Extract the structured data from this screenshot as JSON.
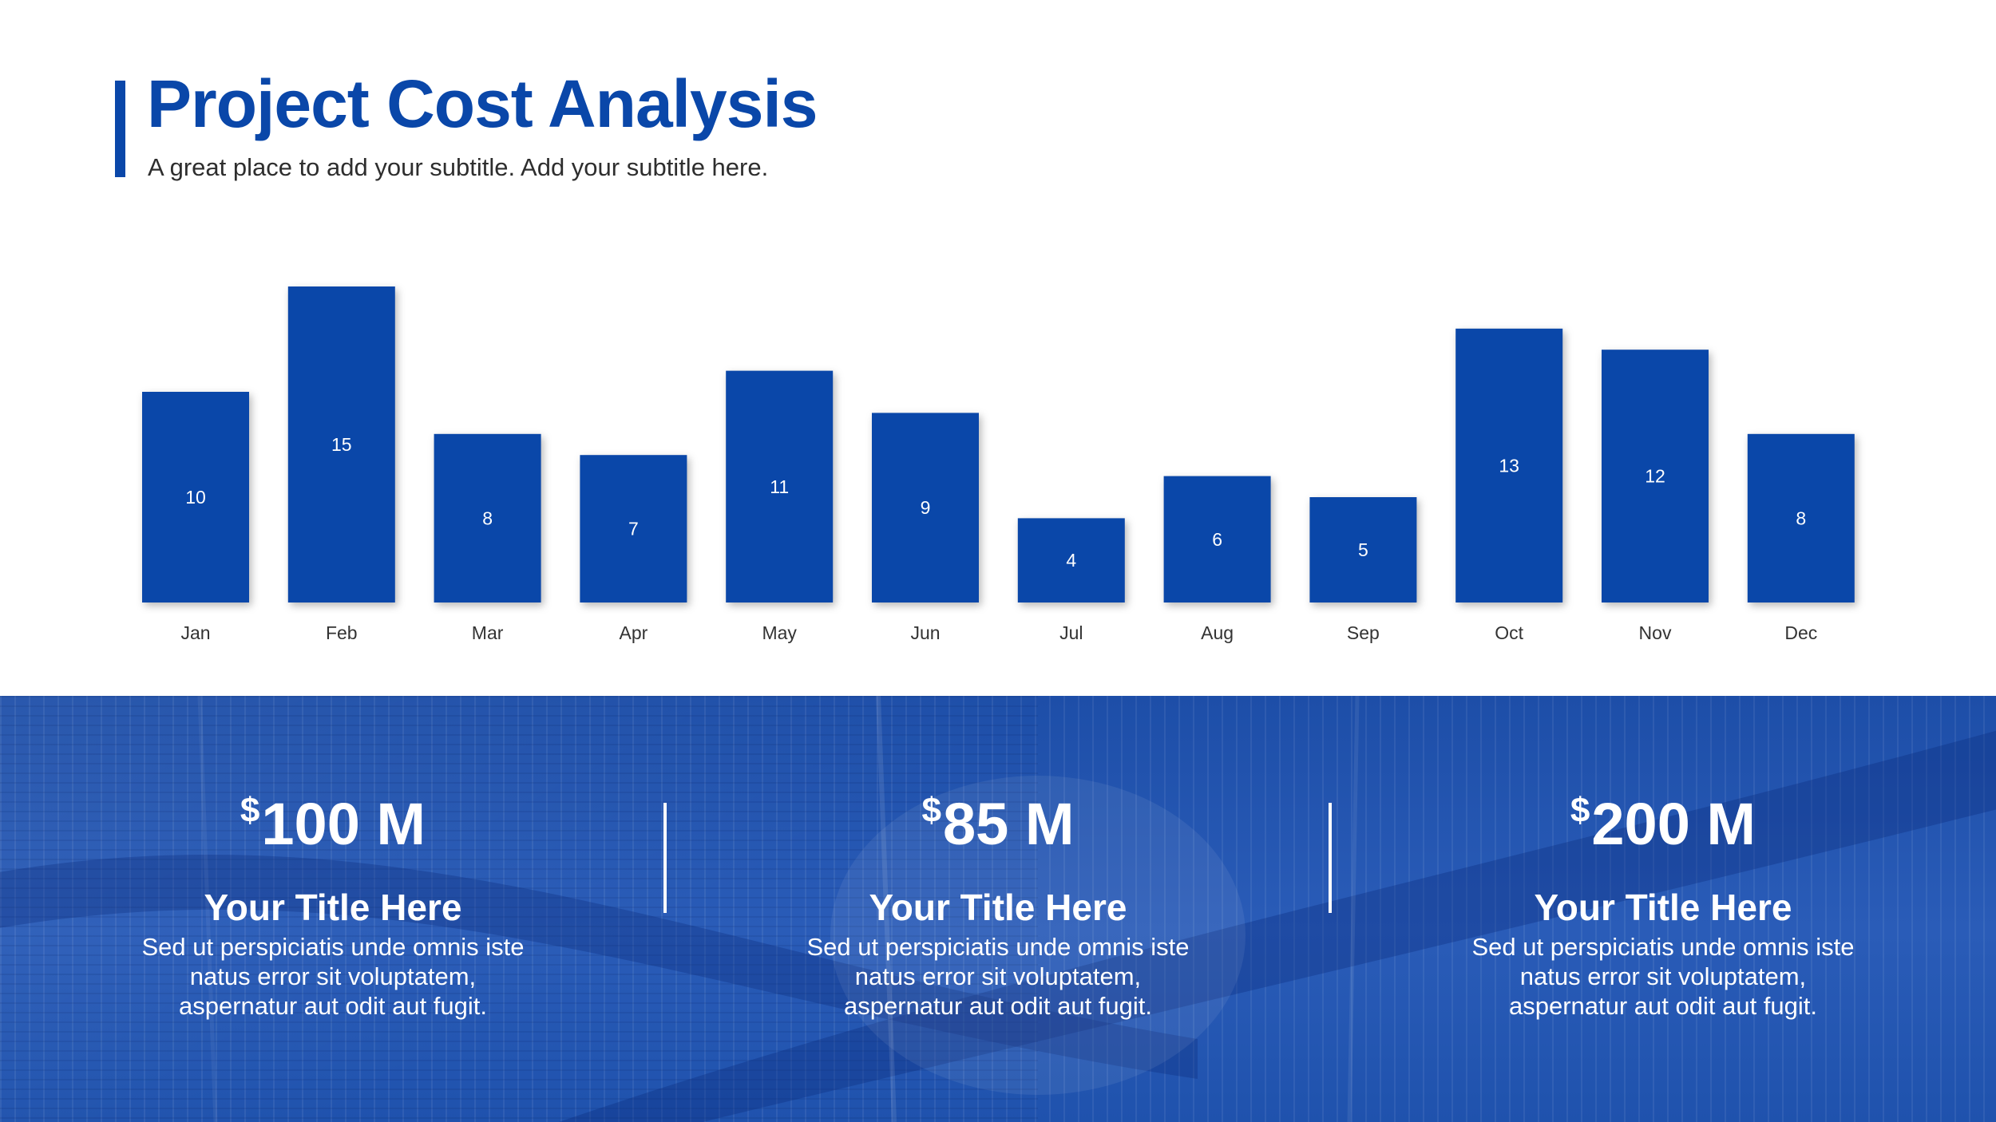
{
  "title": "Project Cost Analysis",
  "subtitle": "A great place to add your subtitle. Add your subtitle here.",
  "colors": {
    "accent": "#0a47a9",
    "band": "#2a5cb8"
  },
  "chart_data": {
    "type": "bar",
    "categories": [
      "Jan",
      "Feb",
      "Mar",
      "Apr",
      "May",
      "Jun",
      "Jul",
      "Aug",
      "Sep",
      "Oct",
      "Nov",
      "Dec"
    ],
    "values": [
      10,
      15,
      8,
      7,
      11,
      9,
      4,
      6,
      5,
      13,
      12,
      8
    ],
    "data_labels": true,
    "title": "",
    "xlabel": "",
    "ylabel": "",
    "ylim": [
      0,
      15
    ],
    "grid": false,
    "legend": "none"
  },
  "stats": [
    {
      "currency": "$",
      "value": "100 M",
      "title": "Your Title Here",
      "description": "Sed ut perspiciatis unde omnis iste natus error sit voluptatem, aspernatur aut odit aut fugit."
    },
    {
      "currency": "$",
      "value": "85 M",
      "title": "Your Title Here",
      "description": "Sed ut perspiciatis unde omnis iste natus error sit voluptatem, aspernatur aut odit aut fugit."
    },
    {
      "currency": "$",
      "value": "200 M",
      "title": "Your Title Here",
      "description": "Sed ut perspiciatis unde omnis iste natus error sit voluptatem, aspernatur aut odit aut fugit."
    }
  ]
}
